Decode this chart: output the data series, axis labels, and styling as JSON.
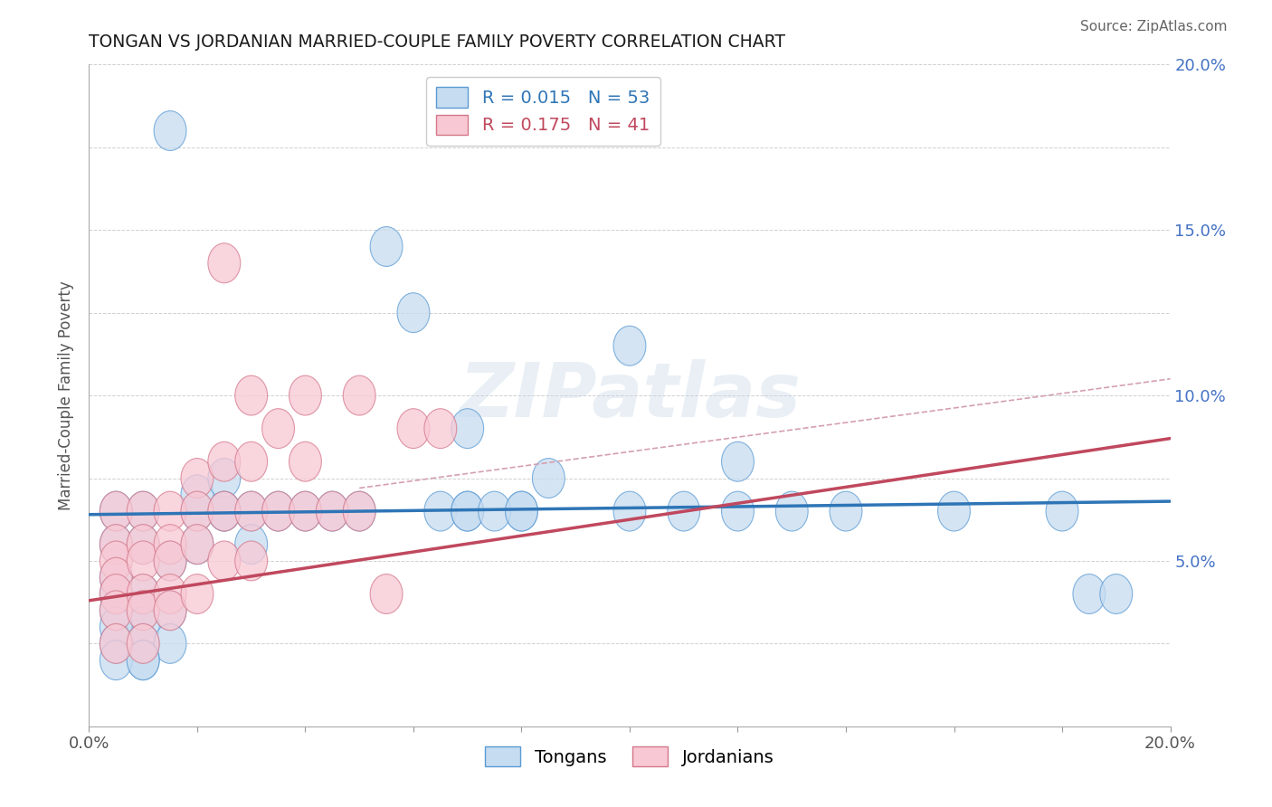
{
  "title": "TONGAN VS JORDANIAN MARRIED-COUPLE FAMILY POVERTY CORRELATION CHART",
  "source": "Source: ZipAtlas.com",
  "ylabel": "Married-Couple Family Poverty",
  "xmin": 0.0,
  "xmax": 0.2,
  "ymin": 0.0,
  "ymax": 0.2,
  "blue_fill": "#c6dcf0",
  "blue_edge": "#5b9bd5",
  "pink_fill": "#f8c8d4",
  "pink_edge": "#d4788a",
  "blue_line": "#2e75b6",
  "pink_line": "#c0485e",
  "dash_line": "#d4a0b0",
  "blue_R": 0.015,
  "blue_N": 53,
  "pink_R": 0.175,
  "pink_N": 41,
  "right_tick_color": "#4472c4",
  "watermark": "ZIPatlas",
  "background_color": "#ffffff",
  "grid_color": "#d0d0d0",
  "tongans_x": [
    0.015,
    0.01,
    0.005,
    0.005,
    0.01,
    0.015,
    0.005,
    0.01,
    0.005,
    0.01,
    0.015,
    0.005,
    0.01,
    0.005,
    0.01,
    0.015,
    0.005,
    0.01,
    0.005,
    0.01,
    0.02,
    0.025,
    0.02,
    0.025,
    0.03,
    0.025,
    0.02,
    0.03,
    0.035,
    0.04,
    0.045,
    0.05,
    0.06,
    0.055,
    0.065,
    0.07,
    0.07,
    0.08,
    0.085,
    0.1,
    0.11,
    0.12,
    0.13,
    0.14,
    0.16,
    0.18,
    0.185,
    0.19,
    0.1,
    0.12,
    0.07,
    0.075,
    0.08
  ],
  "tongans_y": [
    0.18,
    0.065,
    0.065,
    0.055,
    0.055,
    0.05,
    0.045,
    0.04,
    0.04,
    0.035,
    0.035,
    0.035,
    0.03,
    0.03,
    0.025,
    0.025,
    0.025,
    0.02,
    0.02,
    0.02,
    0.065,
    0.065,
    0.07,
    0.075,
    0.065,
    0.065,
    0.055,
    0.055,
    0.065,
    0.065,
    0.065,
    0.065,
    0.125,
    0.145,
    0.065,
    0.065,
    0.09,
    0.065,
    0.075,
    0.065,
    0.065,
    0.065,
    0.065,
    0.065,
    0.065,
    0.065,
    0.04,
    0.04,
    0.115,
    0.08,
    0.065,
    0.065,
    0.065
  ],
  "jordanians_x": [
    0.005,
    0.005,
    0.005,
    0.005,
    0.005,
    0.005,
    0.005,
    0.01,
    0.01,
    0.01,
    0.01,
    0.01,
    0.01,
    0.015,
    0.015,
    0.015,
    0.015,
    0.015,
    0.02,
    0.02,
    0.02,
    0.02,
    0.025,
    0.025,
    0.025,
    0.025,
    0.03,
    0.03,
    0.03,
    0.03,
    0.035,
    0.035,
    0.04,
    0.04,
    0.04,
    0.045,
    0.05,
    0.05,
    0.055,
    0.06,
    0.065
  ],
  "jordanians_y": [
    0.065,
    0.055,
    0.05,
    0.045,
    0.04,
    0.035,
    0.025,
    0.065,
    0.055,
    0.05,
    0.04,
    0.035,
    0.025,
    0.065,
    0.055,
    0.05,
    0.04,
    0.035,
    0.075,
    0.065,
    0.055,
    0.04,
    0.14,
    0.08,
    0.065,
    0.05,
    0.1,
    0.08,
    0.065,
    0.05,
    0.09,
    0.065,
    0.1,
    0.08,
    0.065,
    0.065,
    0.1,
    0.065,
    0.04,
    0.09,
    0.09
  ]
}
